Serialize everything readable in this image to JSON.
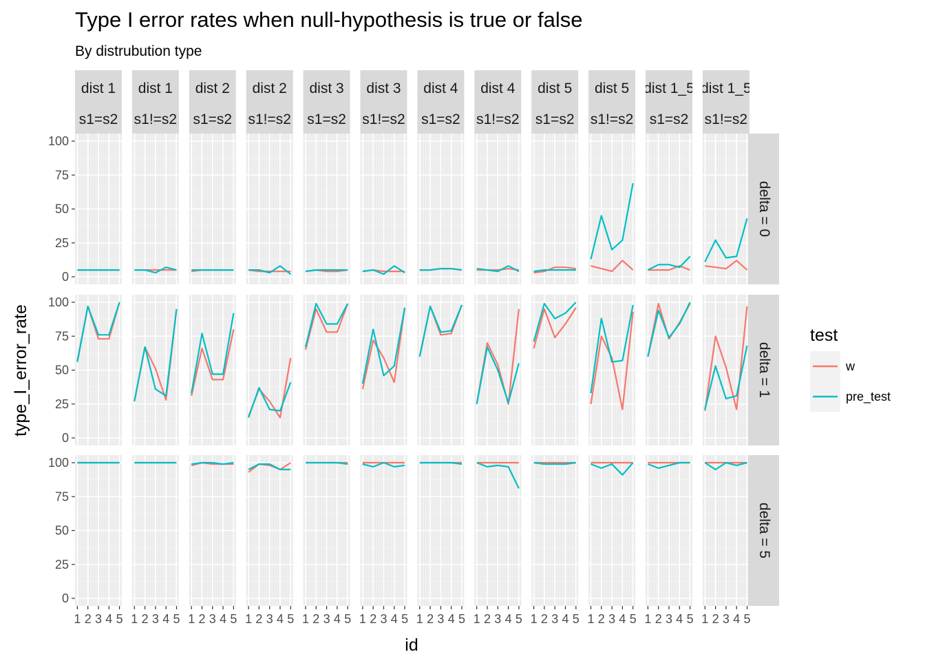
{
  "chart_data": {
    "type": "line",
    "title": "Type I error rates when null-hypothesis is true or false",
    "subtitle": "By distrubution type",
    "xlabel": "id",
    "ylabel": "type_I_error_rate",
    "x": [
      1,
      2,
      3,
      4,
      5
    ],
    "x_ticks": [
      "1",
      "2",
      "3",
      "4",
      "5"
    ],
    "ylim": [
      0,
      100
    ],
    "y_ticks": [
      0,
      25,
      50,
      75,
      100
    ],
    "grid": true,
    "legend": {
      "title": "test",
      "position": "right",
      "entries": [
        {
          "label": "w",
          "color": "#f8766d"
        },
        {
          "label": "pre_test",
          "color": "#00bfc4"
        }
      ]
    },
    "column_facets": [
      {
        "dist": "dist 1",
        "s": "s1=s2"
      },
      {
        "dist": "dist 1",
        "s": "s1!=s2"
      },
      {
        "dist": "dist 2",
        "s": "s1=s2"
      },
      {
        "dist": "dist 2",
        "s": "s1!=s2"
      },
      {
        "dist": "dist 3",
        "s": "s1=s2"
      },
      {
        "dist": "dist 3",
        "s": "s1!=s2"
      },
      {
        "dist": "dist 4",
        "s": "s1=s2"
      },
      {
        "dist": "dist 4",
        "s": "s1!=s2"
      },
      {
        "dist": "dist 5",
        "s": "s1=s2"
      },
      {
        "dist": "dist 5",
        "s": "s1!=s2"
      },
      {
        "dist": "dist 1_5",
        "s": "s1=s2"
      },
      {
        "dist": "dist 1_5",
        "s": "s1!=s2"
      }
    ],
    "row_facets": [
      "delta = 0",
      "delta = 1",
      "delta = 5"
    ],
    "panels": [
      [
        {
          "w": [
            5,
            5,
            5,
            5,
            5
          ],
          "pre_test": [
            5,
            5,
            5,
            5,
            5
          ]
        },
        {
          "w": [
            5,
            5,
            5,
            5,
            5
          ],
          "pre_test": [
            5,
            5,
            3,
            7,
            5
          ]
        },
        {
          "w": [
            4,
            5,
            5,
            5,
            5
          ],
          "pre_test": [
            5,
            5,
            5,
            5,
            5
          ]
        },
        {
          "w": [
            5,
            4,
            4,
            4,
            4
          ],
          "pre_test": [
            5,
            5,
            3,
            8,
            2
          ]
        },
        {
          "w": [
            4,
            5,
            4,
            4,
            5
          ],
          "pre_test": [
            4,
            5,
            5,
            5,
            5
          ]
        },
        {
          "w": [
            4,
            5,
            4,
            4,
            4
          ],
          "pre_test": [
            4,
            5,
            2,
            8,
            3
          ]
        },
        {
          "w": [
            5,
            5,
            6,
            6,
            5
          ],
          "pre_test": [
            5,
            5,
            6,
            6,
            5
          ]
        },
        {
          "w": [
            5,
            5,
            5,
            6,
            5
          ],
          "pre_test": [
            6,
            5,
            4,
            8,
            4
          ]
        },
        {
          "w": [
            3,
            4,
            7,
            7,
            6
          ],
          "pre_test": [
            4,
            5,
            5,
            5,
            5
          ]
        },
        {
          "w": [
            8,
            6,
            4,
            12,
            5
          ],
          "pre_test": [
            13,
            45,
            20,
            27,
            69
          ]
        },
        {
          "w": [
            5,
            5,
            5,
            8,
            5
          ],
          "pre_test": [
            5,
            9,
            9,
            7,
            15
          ]
        },
        {
          "w": [
            8,
            7,
            6,
            12,
            5
          ],
          "pre_test": [
            11,
            27,
            14,
            15,
            43
          ]
        }
      ],
      [
        {
          "w": [
            57,
            97,
            73,
            73,
            100
          ],
          "pre_test": [
            56,
            97,
            76,
            76,
            100
          ]
        },
        {
          "w": [
            27,
            67,
            51,
            28,
            95
          ],
          "pre_test": [
            27,
            67,
            36,
            31,
            95
          ]
        },
        {
          "w": [
            31,
            66,
            43,
            43,
            80
          ],
          "pre_test": [
            33,
            77,
            47,
            47,
            92
          ]
        },
        {
          "w": [
            16,
            36,
            27,
            15,
            59
          ],
          "pre_test": [
            15,
            37,
            21,
            20,
            41
          ]
        },
        {
          "w": [
            65,
            95,
            78,
            78,
            99
          ],
          "pre_test": [
            67,
            99,
            84,
            84,
            99
          ]
        },
        {
          "w": [
            36,
            72,
            59,
            41,
            96
          ],
          "pre_test": [
            40,
            80,
            46,
            53,
            96
          ]
        },
        {
          "w": [
            60,
            97,
            76,
            77,
            98
          ],
          "pre_test": [
            60,
            97,
            78,
            79,
            98
          ]
        },
        {
          "w": [
            25,
            70,
            54,
            25,
            95
          ],
          "pre_test": [
            25,
            67,
            50,
            26,
            55
          ]
        },
        {
          "w": [
            66,
            95,
            74,
            84,
            96
          ],
          "pre_test": [
            71,
            99,
            88,
            92,
            100
          ]
        },
        {
          "w": [
            25,
            75,
            59,
            21,
            93
          ],
          "pre_test": [
            33,
            88,
            56,
            57,
            98
          ]
        },
        {
          "w": [
            60,
            99,
            73,
            85,
            99
          ],
          "pre_test": [
            60,
            94,
            74,
            84,
            100
          ]
        },
        {
          "w": [
            20,
            75,
            52,
            21,
            97
          ],
          "pre_test": [
            21,
            53,
            29,
            31,
            68
          ]
        }
      ],
      [
        {
          "w": [
            100,
            100,
            100,
            100,
            100
          ],
          "pre_test": [
            100,
            100,
            100,
            100,
            100
          ]
        },
        {
          "w": [
            100,
            100,
            100,
            100,
            100
          ],
          "pre_test": [
            100,
            100,
            100,
            100,
            100
          ]
        },
        {
          "w": [
            98,
            100,
            99,
            99,
            99
          ],
          "pre_test": [
            99,
            100,
            100,
            99,
            100
          ]
        },
        {
          "w": [
            93,
            99,
            98,
            95,
            100
          ],
          "pre_test": [
            95,
            99,
            99,
            95,
            95
          ]
        },
        {
          "w": [
            100,
            100,
            100,
            100,
            100
          ],
          "pre_test": [
            100,
            100,
            100,
            100,
            99
          ]
        },
        {
          "w": [
            100,
            100,
            100,
            100,
            100
          ],
          "pre_test": [
            99,
            97,
            100,
            97,
            98
          ]
        },
        {
          "w": [
            100,
            100,
            100,
            100,
            100
          ],
          "pre_test": [
            100,
            100,
            100,
            100,
            99
          ]
        },
        {
          "w": [
            100,
            100,
            100,
            100,
            100
          ],
          "pre_test": [
            100,
            97,
            98,
            97,
            81
          ]
        },
        {
          "w": [
            100,
            100,
            100,
            100,
            100
          ],
          "pre_test": [
            100,
            99,
            99,
            99,
            100
          ]
        },
        {
          "w": [
            100,
            100,
            100,
            100,
            100
          ],
          "pre_test": [
            99,
            96,
            99,
            91,
            100
          ]
        },
        {
          "w": [
            100,
            100,
            100,
            100,
            100
          ],
          "pre_test": [
            99,
            96,
            98,
            100,
            100
          ]
        },
        {
          "w": [
            100,
            100,
            100,
            100,
            100
          ],
          "pre_test": [
            100,
            95,
            100,
            98,
            100
          ]
        }
      ]
    ]
  }
}
